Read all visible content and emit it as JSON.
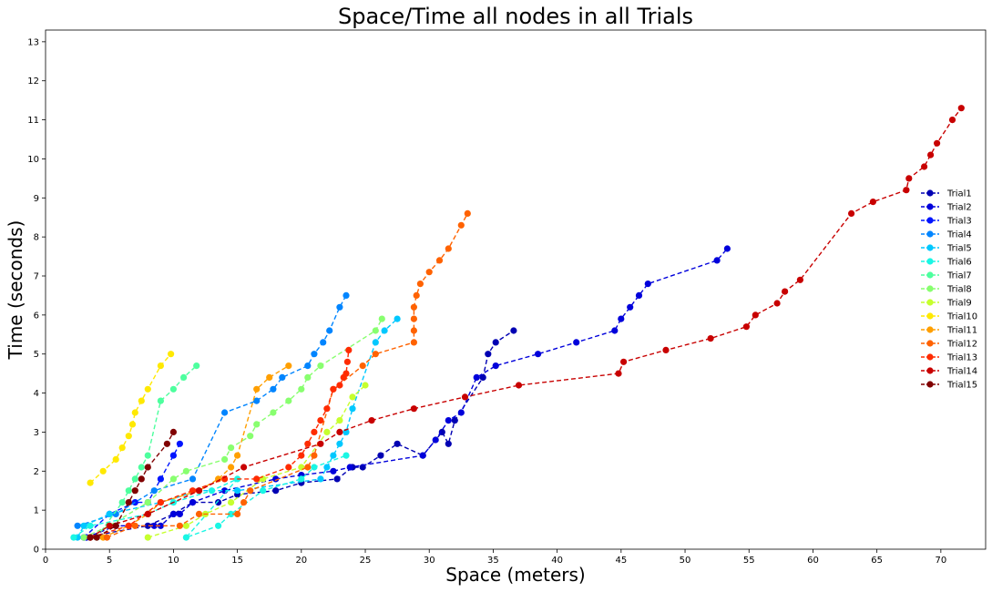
{
  "chart_data": {
    "type": "line",
    "title": "Space/Time all nodes in all Trials",
    "xlabel": "Space (meters)",
    "ylabel": "Time (seconds)",
    "xlim": [
      0,
      73.5
    ],
    "ylim": [
      0,
      13.3
    ],
    "xticks": [
      0,
      5,
      10,
      15,
      20,
      25,
      30,
      35,
      40,
      45,
      50,
      55,
      60,
      65,
      70
    ],
    "yticks": [
      0,
      1,
      2,
      3,
      4,
      5,
      6,
      7,
      8,
      9,
      10,
      11,
      12,
      13
    ],
    "grid": false,
    "legend_position": "right",
    "line_style": "dashed",
    "marker": "circle",
    "series": [
      {
        "name": "Trial1",
        "color": "#0000b3",
        "points": [
          [
            3,
            0.3
          ],
          [
            8,
            0.6
          ],
          [
            10,
            0.9
          ],
          [
            11.5,
            1.2
          ],
          [
            13.5,
            1.2
          ],
          [
            15,
            1.4
          ],
          [
            18,
            1.5
          ],
          [
            20,
            1.7
          ],
          [
            22.8,
            1.8
          ],
          [
            24,
            2.1
          ],
          [
            24.8,
            2.1
          ],
          [
            26.2,
            2.4
          ],
          [
            27.5,
            2.7
          ],
          [
            29.5,
            2.4
          ],
          [
            31,
            3.0
          ],
          [
            31.5,
            2.7
          ],
          [
            32,
            3.3
          ],
          [
            34.2,
            4.4
          ],
          [
            34.6,
            5.0
          ],
          [
            35.2,
            5.3
          ],
          [
            36.6,
            5.6
          ]
        ]
      },
      {
        "name": "Trial2",
        "color": "#0000db",
        "points": [
          [
            3.2,
            0.3
          ],
          [
            5.5,
            0.6
          ],
          [
            8.5,
            0.6
          ],
          [
            9,
            0.6
          ],
          [
            10,
            0.9
          ],
          [
            10.5,
            0.9
          ],
          [
            11.5,
            1.2
          ],
          [
            14,
            1.5
          ],
          [
            18,
            1.8
          ],
          [
            20,
            1.9
          ],
          [
            22.5,
            2.0
          ],
          [
            23.8,
            2.1
          ],
          [
            29.5,
            2.4
          ],
          [
            30.5,
            2.8
          ],
          [
            31.5,
            3.3
          ],
          [
            32.5,
            3.5
          ],
          [
            33.7,
            4.4
          ],
          [
            35.2,
            4.7
          ],
          [
            38.5,
            5.0
          ],
          [
            41.5,
            5.3
          ],
          [
            44.5,
            5.6
          ],
          [
            45,
            5.9
          ],
          [
            45.7,
            6.2
          ],
          [
            46.4,
            6.5
          ],
          [
            47.1,
            6.8
          ],
          [
            52.5,
            7.4
          ],
          [
            53.3,
            7.7
          ]
        ]
      },
      {
        "name": "Trial3",
        "color": "#0015ff",
        "points": [
          [
            3,
            0.3
          ],
          [
            5,
            0.9
          ],
          [
            7,
            1.2
          ],
          [
            8,
            1.2
          ],
          [
            9,
            1.8
          ],
          [
            10,
            2.4
          ],
          [
            10.5,
            2.7
          ]
        ]
      },
      {
        "name": "Trial4",
        "color": "#0085ff",
        "points": [
          [
            2.5,
            0.6
          ],
          [
            5.5,
            0.9
          ],
          [
            8.5,
            1.5
          ],
          [
            11.5,
            1.8
          ],
          [
            14,
            3.5
          ],
          [
            16.5,
            3.8
          ],
          [
            17.8,
            4.1
          ],
          [
            18.5,
            4.4
          ],
          [
            20.5,
            4.7
          ],
          [
            21,
            5.0
          ],
          [
            21.7,
            5.3
          ],
          [
            22.2,
            5.6
          ],
          [
            23,
            6.2
          ],
          [
            23.5,
            6.5
          ]
        ]
      },
      {
        "name": "Trial5",
        "color": "#00c8ff",
        "points": [
          [
            2.5,
            0.3
          ],
          [
            3,
            0.6
          ],
          [
            5,
            0.9
          ],
          [
            9,
            1.2
          ],
          [
            12,
            1.5
          ],
          [
            15,
            1.5
          ],
          [
            21.5,
            1.8
          ],
          [
            22,
            2.1
          ],
          [
            22.5,
            2.4
          ],
          [
            23,
            2.7
          ],
          [
            23.5,
            3.0
          ],
          [
            24,
            3.6
          ],
          [
            25.8,
            5.3
          ],
          [
            26.5,
            5.6
          ],
          [
            27.5,
            5.9
          ]
        ]
      },
      {
        "name": "Trial6",
        "color": "#1af6e4",
        "points": [
          [
            2.2,
            0.3
          ],
          [
            3.5,
            0.6
          ],
          [
            8,
            0.9
          ],
          [
            10,
            1.2
          ],
          [
            13,
            1.5
          ],
          [
            15,
            1.8
          ],
          [
            11,
            0.3
          ],
          [
            13.5,
            0.6
          ],
          [
            14.5,
            0.9
          ],
          [
            17,
            1.5
          ],
          [
            20,
            1.8
          ],
          [
            21,
            2.1
          ],
          [
            23.5,
            2.4
          ]
        ]
      },
      {
        "name": "Trial7",
        "color": "#4dff9e",
        "points": [
          [
            4,
            0.3
          ],
          [
            6,
            1.2
          ],
          [
            6.5,
            1.5
          ],
          [
            7,
            1.8
          ],
          [
            7.5,
            2.1
          ],
          [
            8,
            2.4
          ],
          [
            9,
            3.8
          ],
          [
            10,
            4.1
          ],
          [
            10.8,
            4.4
          ],
          [
            11.8,
            4.7
          ]
        ]
      },
      {
        "name": "Trial8",
        "color": "#88ff6f",
        "points": [
          [
            3,
            0.3
          ],
          [
            5,
            0.6
          ],
          [
            8,
            1.2
          ],
          [
            10,
            1.8
          ],
          [
            11,
            2.0
          ],
          [
            14,
            2.3
          ],
          [
            14.5,
            2.6
          ],
          [
            16,
            2.9
          ],
          [
            16.5,
            3.2
          ],
          [
            17.8,
            3.5
          ],
          [
            19,
            3.8
          ],
          [
            20,
            4.1
          ],
          [
            20.5,
            4.4
          ],
          [
            21.5,
            4.7
          ],
          [
            25.8,
            5.6
          ],
          [
            26.3,
            5.9
          ]
        ]
      },
      {
        "name": "Trial9",
        "color": "#c6ff2e",
        "points": [
          [
            8,
            0.3
          ],
          [
            11,
            0.6
          ],
          [
            12.5,
            0.9
          ],
          [
            14.5,
            1.2
          ],
          [
            17,
            1.8
          ],
          [
            20,
            2.1
          ],
          [
            22,
            3.0
          ],
          [
            23,
            3.3
          ],
          [
            24,
            3.9
          ],
          [
            25,
            4.2
          ]
        ]
      },
      {
        "name": "Trial10",
        "color": "#ffe900",
        "points": [
          [
            3.5,
            1.7
          ],
          [
            4.5,
            2.0
          ],
          [
            5.5,
            2.3
          ],
          [
            6,
            2.6
          ],
          [
            6.5,
            2.9
          ],
          [
            6.8,
            3.2
          ],
          [
            7,
            3.5
          ],
          [
            7.5,
            3.8
          ],
          [
            8,
            4.1
          ],
          [
            9,
            4.7
          ],
          [
            9.8,
            5.0
          ]
        ]
      },
      {
        "name": "Trial11",
        "color": "#ff9f00",
        "points": [
          [
            4.5,
            0.3
          ],
          [
            6.5,
            0.6
          ],
          [
            8,
            0.9
          ],
          [
            9,
            1.2
          ],
          [
            12,
            1.5
          ],
          [
            13.5,
            1.8
          ],
          [
            14.5,
            2.1
          ],
          [
            15,
            2.4
          ],
          [
            16.5,
            4.1
          ],
          [
            17.5,
            4.4
          ],
          [
            19,
            4.7
          ]
        ]
      },
      {
        "name": "Trial12",
        "color": "#ff6200",
        "points": [
          [
            4.8,
            0.3
          ],
          [
            7,
            0.6
          ],
          [
            10.5,
            0.6
          ],
          [
            12,
            0.9
          ],
          [
            15,
            0.9
          ],
          [
            15.5,
            1.2
          ],
          [
            16,
            1.5
          ],
          [
            20.5,
            2.1
          ],
          [
            21,
            2.4
          ],
          [
            22.5,
            4.1
          ],
          [
            24.8,
            4.7
          ],
          [
            25.8,
            5.0
          ],
          [
            28.8,
            5.3
          ],
          [
            28.8,
            5.6
          ],
          [
            28.8,
            5.9
          ],
          [
            28.8,
            6.2
          ],
          [
            29,
            6.5
          ],
          [
            29.3,
            6.8
          ],
          [
            30,
            7.1
          ],
          [
            30.8,
            7.4
          ],
          [
            31.5,
            7.7
          ],
          [
            32.5,
            8.3
          ],
          [
            33,
            8.6
          ]
        ]
      },
      {
        "name": "Trial13",
        "color": "#ff2b00",
        "points": [
          [
            3.5,
            0.3
          ],
          [
            6.5,
            0.6
          ],
          [
            9,
            1.2
          ],
          [
            11.5,
            1.5
          ],
          [
            14,
            1.8
          ],
          [
            16.5,
            1.8
          ],
          [
            19,
            2.1
          ],
          [
            20,
            2.4
          ],
          [
            20.5,
            2.7
          ],
          [
            21,
            3.0
          ],
          [
            21.5,
            3.3
          ],
          [
            22,
            3.6
          ],
          [
            22.5,
            4.1
          ],
          [
            23,
            4.2
          ],
          [
            23.3,
            4.4
          ],
          [
            23.5,
            4.5
          ],
          [
            23.6,
            4.8
          ],
          [
            23.7,
            5.1
          ]
        ]
      },
      {
        "name": "Trial14",
        "color": "#c80000",
        "points": [
          [
            3.5,
            0.3
          ],
          [
            5,
            0.6
          ],
          [
            8,
            0.9
          ],
          [
            12,
            1.5
          ],
          [
            15.5,
            2.1
          ],
          [
            21.5,
            2.7
          ],
          [
            23,
            3.0
          ],
          [
            25.5,
            3.3
          ],
          [
            28.8,
            3.6
          ],
          [
            32.8,
            3.9
          ],
          [
            37,
            4.2
          ],
          [
            44.8,
            4.5
          ],
          [
            45.2,
            4.8
          ],
          [
            48.5,
            5.1
          ],
          [
            52,
            5.4
          ],
          [
            54.8,
            5.7
          ],
          [
            55.5,
            6.0
          ],
          [
            57.2,
            6.3
          ],
          [
            57.8,
            6.6
          ],
          [
            59,
            6.9
          ],
          [
            63,
            8.6
          ],
          [
            64.7,
            8.9
          ],
          [
            67.3,
            9.2
          ],
          [
            67.5,
            9.5
          ],
          [
            68.7,
            9.8
          ],
          [
            69.2,
            10.1
          ],
          [
            69.7,
            10.4
          ],
          [
            70.9,
            11.0
          ],
          [
            71.6,
            11.3
          ]
        ]
      },
      {
        "name": "Trial15",
        "color": "#800000",
        "points": [
          [
            3.5,
            0.3
          ],
          [
            4,
            0.3
          ],
          [
            5.5,
            0.6
          ],
          [
            6.5,
            1.2
          ],
          [
            7,
            1.5
          ],
          [
            7.5,
            1.8
          ],
          [
            8,
            2.1
          ],
          [
            9.5,
            2.7
          ],
          [
            10,
            3.0
          ]
        ]
      }
    ]
  }
}
